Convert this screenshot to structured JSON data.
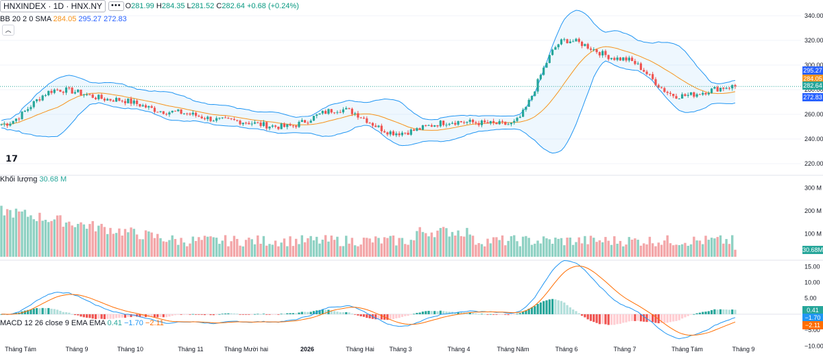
{
  "header": {
    "symbol": "HNXINDEX · 1D · HNX.NY",
    "ohlc": {
      "o_label": "O",
      "o": "281.99",
      "h_label": "H",
      "h": "284.35",
      "l_label": "L",
      "l": "281.52",
      "c_label": "C",
      "c": "282.64",
      "change": "+0.68 (+0.24%)"
    },
    "bb": {
      "label": "BB 20 2 0 SMA",
      "basis": "284.05",
      "upper": "295.27",
      "lower": "272.83"
    },
    "volume": {
      "label": "Khối lượng",
      "value": "30.68 M"
    },
    "macd": {
      "label": "MACD 12 26 close 9 EMA EMA",
      "hist": "0.41",
      "macd": "−1.70",
      "signal": "−2.11"
    }
  },
  "colors": {
    "up": "#26a69a",
    "down": "#ef5350",
    "up_vol": "#8fd1c3",
    "down_vol": "#f3a6a8",
    "bb_basis": "#f7931a",
    "bb_band": "#2962ff",
    "macd_line": "#2196f3",
    "signal_line": "#ff6d00"
  },
  "badges": {
    "upper": "295.27",
    "basis": "284.05",
    "last": "282.64",
    "lower": "272.83",
    "volume": "30.68M",
    "hist": "0.41",
    "macd": "−1.70",
    "signal": "−2.11"
  },
  "x_axis": [
    "Tháng Tám",
    "Tháng 9",
    "Tháng 10",
    "Tháng 11",
    "Tháng Mười hai",
    "2026",
    "Tháng Hai",
    "Tháng 3",
    "Tháng 4",
    "Tháng Năm",
    "Tháng 6",
    "Tháng 7",
    "Tháng Tám",
    "Tháng 9"
  ],
  "chart_data": [
    {
      "type": "candlestick",
      "title": "HNXINDEX · 1D · HNX.NY",
      "ylim": [
        215,
        345
      ],
      "yticks": [
        "340.00",
        "320.00",
        "300.00",
        "280.00",
        "260.00",
        "240.00",
        "220.00"
      ],
      "key_closes": [
        {
          "period": "Tháng Tám",
          "close": 252
        },
        {
          "period": "Tháng 9",
          "close": 280
        },
        {
          "period": "Tháng 10",
          "close": 272
        },
        {
          "period": "Tháng 11",
          "close": 262
        },
        {
          "period": "Tháng Mười hai",
          "close": 255
        },
        {
          "period": "2026",
          "close": 250
        },
        {
          "period": "Tháng Hai",
          "close": 264
        },
        {
          "period": "Tháng 3",
          "close": 245
        },
        {
          "period": "Tháng 4",
          "close": 254
        },
        {
          "period": "Tháng Năm",
          "close": 252
        },
        {
          "period": "Tháng 6",
          "close": 320
        },
        {
          "period": "Tháng 7",
          "close": 305
        },
        {
          "period": "Tháng Tám",
          "close": 275
        },
        {
          "period": "Tháng 9",
          "close": 282.64
        }
      ],
      "last": {
        "open": 281.99,
        "high": 284.35,
        "low": 281.52,
        "close": 282.64
      },
      "bollinger": {
        "length": 20,
        "mult": 2,
        "basis": 284.05,
        "upper": 295.27,
        "lower": 272.83
      }
    },
    {
      "type": "bar",
      "title": "Khối lượng",
      "ylim": [
        0,
        320
      ],
      "yticks": [
        "300 M",
        "200 M",
        "100 M"
      ],
      "last": 30.68
    },
    {
      "type": "line",
      "title": "MACD 12 26 close 9 EMA EMA",
      "ylim": [
        -11,
        17
      ],
      "yticks": [
        "15.00",
        "10.00",
        "5.00",
        "0.00",
        "−5.00",
        "−10.00"
      ],
      "last": {
        "histogram": 0.41,
        "macd": -1.7,
        "signal": -2.11
      }
    }
  ]
}
